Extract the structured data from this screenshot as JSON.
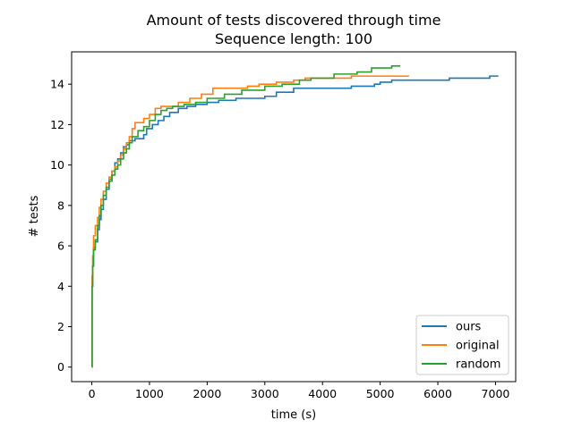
{
  "chart_data": {
    "type": "line",
    "title": "Amount of tests discovered through time",
    "subtitle": "Sequence length: 100",
    "xlabel": "time (s)",
    "ylabel": "# tests",
    "xlim": [
      -350,
      7350
    ],
    "ylim": [
      -0.72,
      15.6
    ],
    "xticks": [
      0,
      1000,
      2000,
      3000,
      4000,
      5000,
      6000,
      7000
    ],
    "yticks": [
      0,
      2,
      4,
      6,
      8,
      10,
      12,
      14
    ],
    "grid": false,
    "legend_position": "bottom-right",
    "series": [
      {
        "name": "ours",
        "color": "#1f77b4",
        "step": "post",
        "points": [
          [
            0,
            0
          ],
          [
            5,
            4.0
          ],
          [
            15,
            5.0
          ],
          [
            30,
            5.9
          ],
          [
            60,
            6.2
          ],
          [
            100,
            6.8
          ],
          [
            130,
            7.3
          ],
          [
            160,
            7.8
          ],
          [
            200,
            8.3
          ],
          [
            250,
            8.8
          ],
          [
            300,
            9.3
          ],
          [
            350,
            9.7
          ],
          [
            400,
            10.1
          ],
          [
            450,
            10.3
          ],
          [
            500,
            10.6
          ],
          [
            550,
            10.9
          ],
          [
            600,
            11.0
          ],
          [
            650,
            11.2
          ],
          [
            750,
            11.3
          ],
          [
            900,
            11.5
          ],
          [
            950,
            11.8
          ],
          [
            1050,
            12.0
          ],
          [
            1150,
            12.2
          ],
          [
            1250,
            12.4
          ],
          [
            1350,
            12.6
          ],
          [
            1500,
            12.8
          ],
          [
            1650,
            12.9
          ],
          [
            1800,
            13.0
          ],
          [
            2000,
            13.1
          ],
          [
            2200,
            13.2
          ],
          [
            2500,
            13.3
          ],
          [
            3000,
            13.4
          ],
          [
            3200,
            13.6
          ],
          [
            3500,
            13.8
          ],
          [
            4500,
            13.9
          ],
          [
            4900,
            14.0
          ],
          [
            5000,
            14.1
          ],
          [
            5200,
            14.2
          ],
          [
            6200,
            14.3
          ],
          [
            6900,
            14.4
          ],
          [
            7050,
            14.4
          ]
        ]
      },
      {
        "name": "original",
        "color": "#ff7f0e",
        "step": "post",
        "points": [
          [
            0,
            0
          ],
          [
            5,
            4.5
          ],
          [
            15,
            5.5
          ],
          [
            30,
            6.5
          ],
          [
            60,
            7.0
          ],
          [
            100,
            7.4
          ],
          [
            130,
            7.9
          ],
          [
            160,
            8.3
          ],
          [
            200,
            8.7
          ],
          [
            250,
            9.1
          ],
          [
            300,
            9.4
          ],
          [
            350,
            9.7
          ],
          [
            400,
            9.9
          ],
          [
            450,
            10.2
          ],
          [
            500,
            10.5
          ],
          [
            550,
            10.8
          ],
          [
            600,
            11.1
          ],
          [
            650,
            11.4
          ],
          [
            700,
            11.8
          ],
          [
            750,
            12.1
          ],
          [
            900,
            12.3
          ],
          [
            1000,
            12.5
          ],
          [
            1100,
            12.8
          ],
          [
            1200,
            12.9
          ],
          [
            1500,
            13.1
          ],
          [
            1700,
            13.3
          ],
          [
            1900,
            13.5
          ],
          [
            2100,
            13.8
          ],
          [
            2700,
            13.9
          ],
          [
            2900,
            14.0
          ],
          [
            3200,
            14.1
          ],
          [
            3500,
            14.2
          ],
          [
            3700,
            14.3
          ],
          [
            4500,
            14.4
          ],
          [
            5500,
            14.4
          ]
        ]
      },
      {
        "name": "random",
        "color": "#2ca02c",
        "step": "post",
        "points": [
          [
            0,
            0
          ],
          [
            5,
            4.0
          ],
          [
            15,
            5.0
          ],
          [
            30,
            5.8
          ],
          [
            60,
            6.3
          ],
          [
            100,
            7.0
          ],
          [
            130,
            7.5
          ],
          [
            160,
            8.0
          ],
          [
            200,
            8.5
          ],
          [
            250,
            8.9
          ],
          [
            300,
            9.2
          ],
          [
            350,
            9.5
          ],
          [
            400,
            9.8
          ],
          [
            450,
            10.0
          ],
          [
            500,
            10.3
          ],
          [
            550,
            10.6
          ],
          [
            600,
            10.8
          ],
          [
            650,
            11.1
          ],
          [
            700,
            11.4
          ],
          [
            800,
            11.7
          ],
          [
            900,
            11.9
          ],
          [
            1000,
            12.2
          ],
          [
            1100,
            12.5
          ],
          [
            1200,
            12.7
          ],
          [
            1300,
            12.8
          ],
          [
            1400,
            12.9
          ],
          [
            1600,
            13.0
          ],
          [
            1800,
            13.1
          ],
          [
            2000,
            13.3
          ],
          [
            2300,
            13.5
          ],
          [
            2600,
            13.7
          ],
          [
            3000,
            13.9
          ],
          [
            3300,
            14.0
          ],
          [
            3600,
            14.2
          ],
          [
            3800,
            14.3
          ],
          [
            4200,
            14.5
          ],
          [
            4600,
            14.6
          ],
          [
            4850,
            14.8
          ],
          [
            5200,
            14.9
          ],
          [
            5350,
            14.9
          ]
        ]
      }
    ]
  }
}
